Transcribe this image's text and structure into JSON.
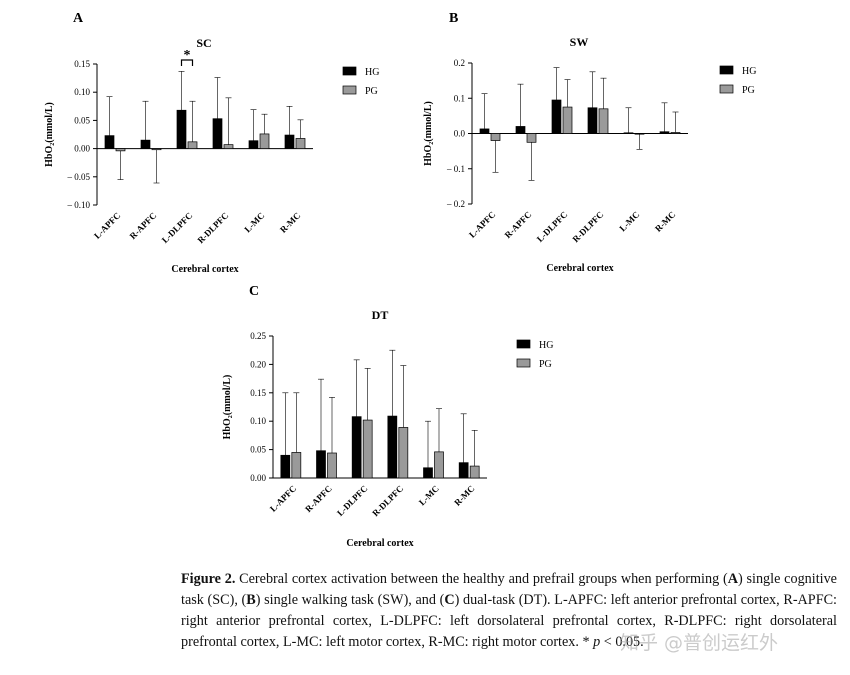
{
  "chart_data": [
    {
      "type": "bar",
      "panel": "A",
      "title": "SC",
      "xlabel": "Cerebral cortex",
      "ylabel": "HbO₂(mmol/L)",
      "categories": [
        "L-APFC",
        "R-APFC",
        "L-DLPFC",
        "R-DLPFC",
        "L-MC",
        "R-MC"
      ],
      "ylim": [
        -0.1,
        0.15
      ],
      "yticks": [
        "0.15",
        "0.10",
        "0.05",
        "0.00",
        "– 0.05",
        "– 0.10"
      ],
      "ytick_values": [
        0.15,
        0.1,
        0.05,
        0.0,
        -0.05,
        -0.1
      ],
      "legend_position": "top-right",
      "series": [
        {
          "name": "HG",
          "color": "#000000",
          "values": [
            0.023,
            0.015,
            0.068,
            0.053,
            0.014,
            0.024
          ],
          "errors": [
            0.069,
            0.069,
            0.069,
            0.073,
            0.055,
            0.051
          ]
        },
        {
          "name": "PG",
          "color": "#9a9a9a",
          "values": [
            -0.004,
            -0.002,
            0.012,
            0.007,
            0.026,
            0.018
          ],
          "errors": [
            0.051,
            0.059,
            0.072,
            0.083,
            0.035,
            0.033
          ]
        }
      ],
      "annotation": {
        "text": "*",
        "category_index": 2
      }
    },
    {
      "type": "bar",
      "panel": "B",
      "title": "SW",
      "xlabel": "Cerebral cortex",
      "ylabel": "HbO₂(mmol/L)",
      "categories": [
        "L-APFC",
        "R-APFC",
        "L-DLPFC",
        "R-DLPFC",
        "L-MC",
        "R-MC"
      ],
      "ylim": [
        -0.2,
        0.2
      ],
      "yticks": [
        "0.2",
        "0.1",
        "0.0",
        "– 0.1",
        "– 0.2"
      ],
      "ytick_values": [
        0.2,
        0.1,
        0.0,
        -0.1,
        -0.2
      ],
      "legend_position": "top-right",
      "series": [
        {
          "name": "HG",
          "color": "#000000",
          "values": [
            0.013,
            0.02,
            0.095,
            0.073,
            0.002,
            0.005
          ],
          "errors": [
            0.1,
            0.12,
            0.092,
            0.102,
            0.071,
            0.082
          ]
        },
        {
          "name": "PG",
          "color": "#9a9a9a",
          "values": [
            -0.02,
            -0.025,
            0.075,
            0.07,
            -0.002,
            0.003
          ],
          "errors": [
            0.09,
            0.108,
            0.078,
            0.087,
            0.043,
            0.058
          ]
        }
      ]
    },
    {
      "type": "bar",
      "panel": "C",
      "title": "DT",
      "xlabel": "Cerebral cortex",
      "ylabel": "HbO₂(mmol/L)",
      "categories": [
        "L-APFC",
        "R-APFC",
        "L-DLPFC",
        "R-DLPFC",
        "L-MC",
        "R-MC"
      ],
      "ylim": [
        0,
        0.25
      ],
      "yticks": [
        "0.25",
        "0.20",
        "0.15",
        "0.10",
        "0.05",
        "0.00"
      ],
      "ytick_values": [
        0.25,
        0.2,
        0.15,
        0.1,
        0.05,
        0.0
      ],
      "legend_position": "top-right",
      "series": [
        {
          "name": "HG",
          "color": "#000000",
          "values": [
            0.04,
            0.048,
            0.108,
            0.109,
            0.018,
            0.027
          ],
          "errors": [
            0.11,
            0.126,
            0.1,
            0.116,
            0.082,
            0.086
          ]
        },
        {
          "name": "PG",
          "color": "#9a9a9a",
          "values": [
            0.045,
            0.044,
            0.102,
            0.089,
            0.046,
            0.021
          ],
          "errors": [
            0.105,
            0.098,
            0.091,
            0.109,
            0.076,
            0.063
          ]
        }
      ]
    }
  ],
  "caption": {
    "label": "Figure 2.",
    "text_1": " Cerebral cortex activation between the healthy and prefrail groups when performing (",
    "A": "A",
    "text_2": ") single cognitive task (SC), (",
    "B": "B",
    "text_3": ") single walking task (SW), and (",
    "C": "C",
    "text_4": ") dual-task (DT). L-APFC: left anterior prefrontal cortex, R-APFC: right anterior prefrontal cortex, L-DLPFC: left dorsolateral prefrontal cortex, R-DLPFC: right dorsolateral prefrontal cortex, L-MC: left motor cortex, R-MC: right motor cortex. * ",
    "p": "p",
    "text_5": " < 0.05."
  },
  "watermark": "知乎 @普创运红外"
}
